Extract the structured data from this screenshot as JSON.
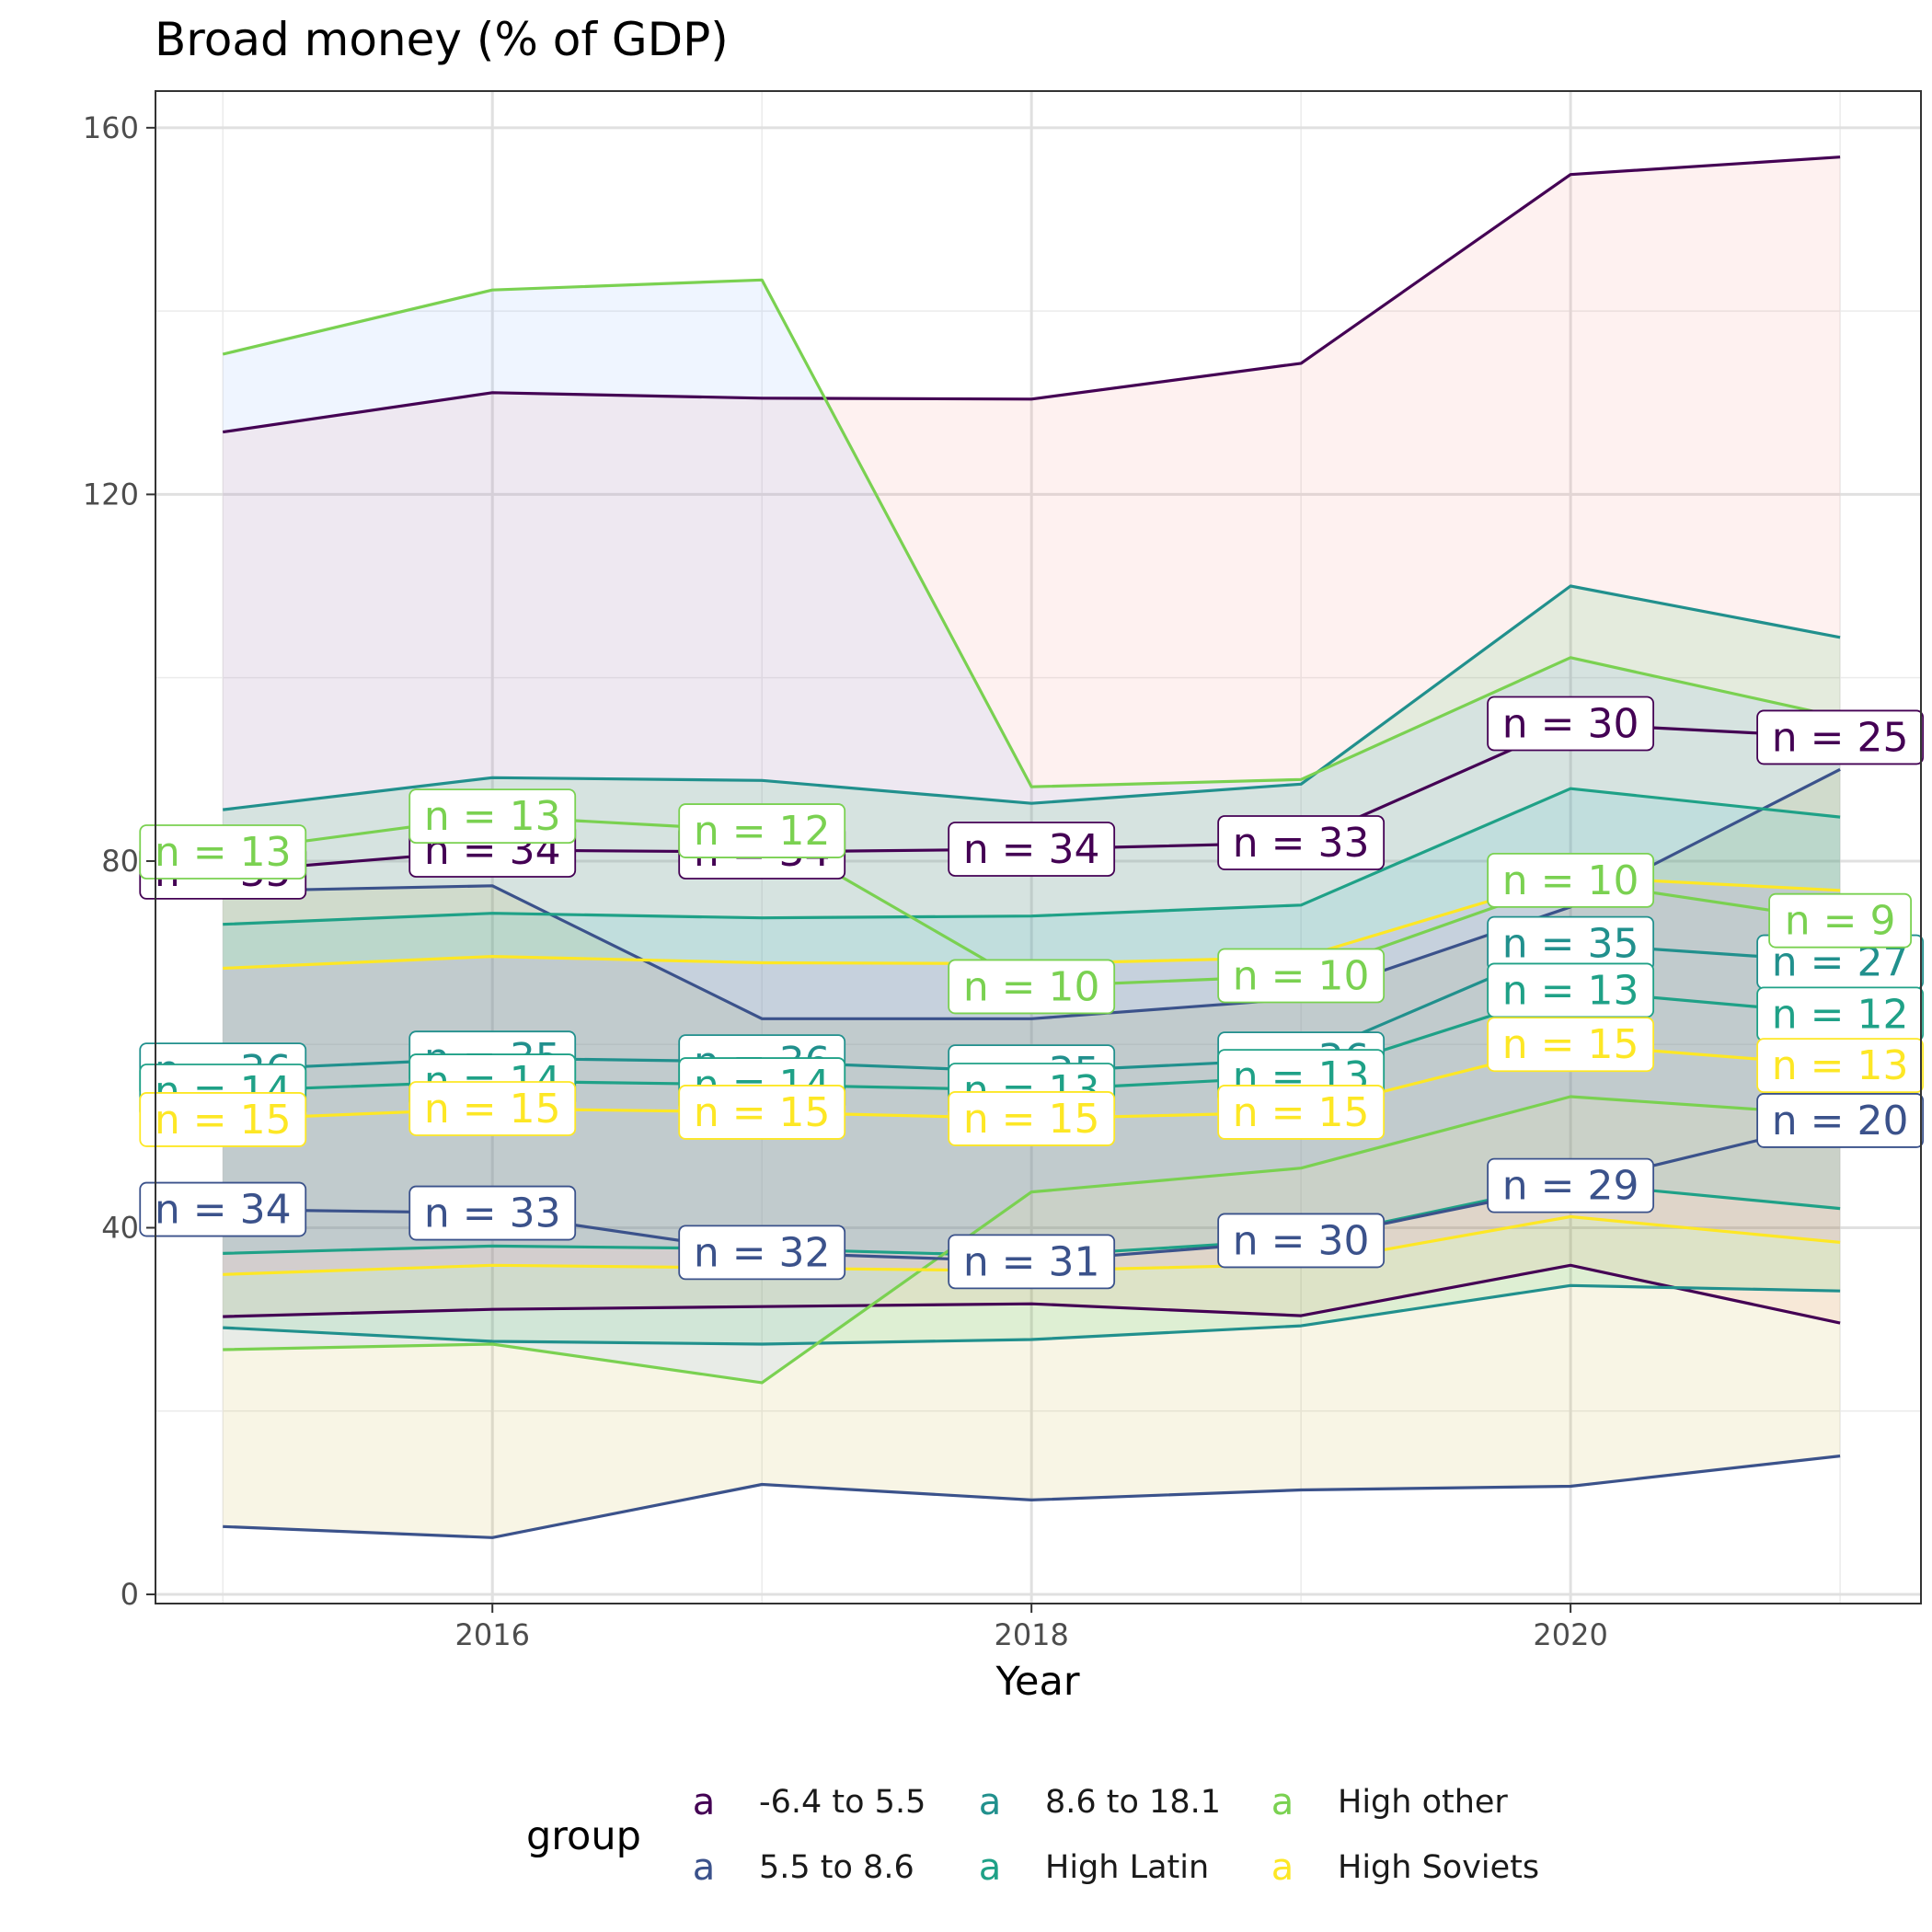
{
  "chart_data": {
    "type": "line",
    "title": "Broad money (% of GDP)",
    "xlabel": "Year",
    "ylabel": "",
    "xlim": [
      2014.75,
      2021.3
    ],
    "ylim": [
      -1,
      164
    ],
    "x_ticks": [
      2016,
      2018,
      2020
    ],
    "y_ticks": [
      0,
      40,
      80,
      120,
      160
    ],
    "grid": true,
    "legend_title": "group",
    "legend_position": "bottom",
    "legend_key_glyph": "a",
    "x": [
      2015,
      2016,
      2017,
      2018,
      2019,
      2020,
      2021
    ],
    "series": [
      {
        "name": "-6.4 to 5.5",
        "color": "#440154",
        "fill": "#f8766d",
        "upper": [
          126.8,
          131.1,
          130.5,
          130.4,
          134.3,
          154.9,
          156.8
        ],
        "mean": [
          78.8,
          81.2,
          81.0,
          81.3,
          82.0,
          95.0,
          93.5
        ],
        "lower": [
          30.3,
          31.1,
          31.4,
          31.7,
          30.4,
          35.9,
          29.6
        ],
        "n": [
          35,
          34,
          34,
          34,
          33,
          30,
          25
        ]
      },
      {
        "name": "5.5 to 8.6",
        "color": "#3b528b",
        "fill": "#b79f00",
        "upper": [
          76.7,
          77.3,
          62.8,
          62.8,
          65.0,
          75.0,
          90.0
        ],
        "mean": [
          42.0,
          41.6,
          37.3,
          36.3,
          38.6,
          44.6,
          51.7
        ],
        "lower": [
          7.4,
          6.2,
          12.0,
          10.3,
          11.4,
          11.8,
          15.1
        ],
        "n": [
          34,
          33,
          32,
          31,
          30,
          29,
          20
        ]
      },
      {
        "name": "8.6 to 18.1",
        "color": "#21908d",
        "fill": "#00ba38",
        "upper": [
          85.6,
          89.1,
          88.8,
          86.3,
          88.4,
          110.0,
          104.4
        ],
        "mean": [
          57.2,
          58.5,
          58.1,
          57.0,
          58.4,
          71.0,
          69.0
        ],
        "lower": [
          29.1,
          27.6,
          27.3,
          27.8,
          29.3,
          33.7,
          33.1
        ],
        "n": [
          36,
          35,
          36,
          35,
          36,
          35,
          27
        ]
      },
      {
        "name": "High Latin",
        "color": "#1fa187",
        "fill": "#00bfc4",
        "upper": [
          73.1,
          74.3,
          73.8,
          74.0,
          75.2,
          87.9,
          84.8
        ],
        "mean": [
          54.9,
          56.0,
          55.6,
          55.0,
          56.5,
          65.9,
          63.3
        ],
        "lower": [
          37.2,
          38.0,
          37.7,
          36.9,
          38.7,
          44.9,
          42.1
        ],
        "n": [
          14,
          14,
          14,
          13,
          13,
          13,
          12
        ]
      },
      {
        "name": "High other",
        "color": "#7ad151",
        "fill": "#619cff",
        "upper": [
          135.3,
          142.3,
          143.4,
          88.1,
          88.9,
          102.2,
          95.7
        ],
        "mean": [
          81.0,
          84.9,
          83.3,
          66.3,
          67.5,
          77.9,
          73.5
        ],
        "lower": [
          26.7,
          27.3,
          23.1,
          43.9,
          46.5,
          54.3,
          52.3
        ],
        "n": [
          13,
          13,
          12,
          10,
          10,
          10,
          9
        ]
      },
      {
        "name": "High Soviets",
        "color": "#fde725",
        "fill": "#f564e3",
        "upper": [
          68.3,
          69.6,
          68.9,
          68.8,
          69.5,
          78.3,
          76.8
        ],
        "mean": [
          51.8,
          53.0,
          52.6,
          51.9,
          52.6,
          60.0,
          57.7
        ],
        "lower": [
          34.9,
          35.9,
          35.6,
          35.3,
          36.0,
          41.2,
          38.4
        ],
        "n": [
          15,
          15,
          15,
          15,
          15,
          15,
          13
        ]
      }
    ]
  }
}
